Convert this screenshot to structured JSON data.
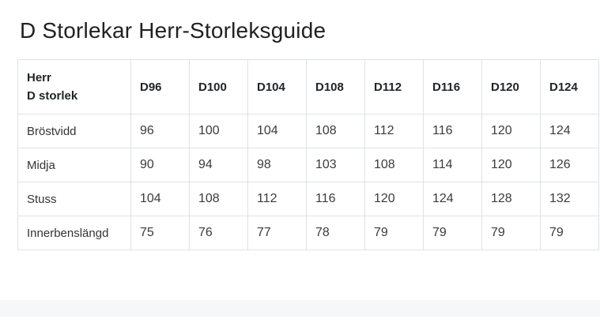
{
  "page": {
    "title": "D Storlekar Herr-Storleksguide"
  },
  "size_table": {
    "header": {
      "label_line1": "Herr",
      "label_line2": "D storlek",
      "columns": [
        "D96",
        "D100",
        "D104",
        "D108",
        "D112",
        "D116",
        "D120",
        "D124"
      ]
    },
    "rows": [
      {
        "label": "Bröstvidd",
        "values": [
          "96",
          "100",
          "104",
          "108",
          "112",
          "116",
          "120",
          "124"
        ]
      },
      {
        "label": "Midja",
        "values": [
          "90",
          "94",
          "98",
          "103",
          "108",
          "114",
          "120",
          "126"
        ]
      },
      {
        "label": "Stuss",
        "values": [
          "104",
          "108",
          "112",
          "116",
          "120",
          "124",
          "128",
          "132"
        ]
      },
      {
        "label": "Innerbenslängd",
        "values": [
          "75",
          "76",
          "77",
          "78",
          "79",
          "79",
          "79",
          "79"
        ]
      }
    ]
  },
  "colors": {
    "background": "#ffffff",
    "text": "#212529",
    "table_border": "#dee2e6",
    "footer_band": "#f6f7f9"
  }
}
